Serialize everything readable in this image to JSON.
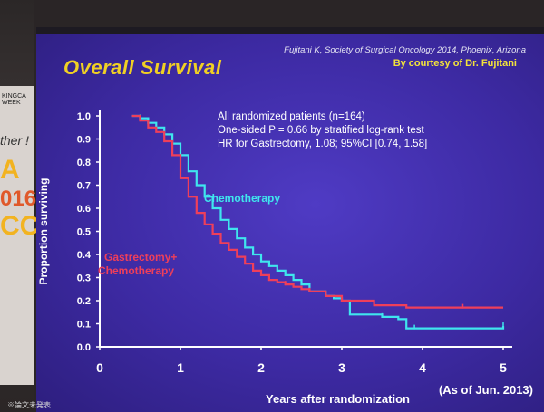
{
  "slide": {
    "credit": "Fujitani K, Society of Surgical Oncology 2014, Phoenix, Arizona",
    "courtesy": "By courtesy of Dr. Fujitani",
    "title": "Overall  Survival",
    "stats": [
      "All randomized patients (n=164)",
      "One-sided P = 0.66 by stratified log-rank test",
      "HR for Gastrectomy, 1.08; 95%CI [0.74, 1.58]"
    ],
    "as_of": "(As of Jun. 2013)"
  },
  "room": {
    "banner_line": "KINGCA WEEK",
    "banner_script": "ther !",
    "banner_letters": [
      "A",
      "016",
      "CC"
    ],
    "footnote": "※論文未発表"
  },
  "colors": {
    "chemotherapy": "#3fe6ee",
    "gastrectomy": "#ef3f5a",
    "axis": "#ffffff",
    "title": "#f0d024"
  },
  "chart_data": {
    "type": "line",
    "title": "Overall  Survival",
    "xlabel": "Years after randomization",
    "ylabel": "Proportion surviving",
    "xlim": [
      0,
      5
    ],
    "ylim": [
      0,
      1.0
    ],
    "x_ticks": [
      "0",
      "1",
      "2",
      "3",
      "4",
      "5"
    ],
    "y_ticks": [
      "0.0",
      "0.1",
      "0.2",
      "0.3",
      "0.4",
      "0.5",
      "0.6",
      "0.7",
      "0.8",
      "0.9",
      "1.0"
    ],
    "series": [
      {
        "name": "Chemotherapy",
        "color_key": "chemotherapy",
        "x": [
          0.4,
          0.5,
          0.6,
          0.7,
          0.8,
          0.9,
          1.0,
          1.1,
          1.2,
          1.3,
          1.4,
          1.5,
          1.6,
          1.7,
          1.8,
          1.9,
          2.0,
          2.1,
          2.2,
          2.3,
          2.4,
          2.5,
          2.6,
          2.8,
          2.9,
          3.0,
          3.1,
          3.3,
          3.5,
          3.7,
          3.8,
          3.9,
          4.0,
          4.5,
          5.0
        ],
        "y": [
          1.0,
          0.99,
          0.97,
          0.95,
          0.92,
          0.88,
          0.83,
          0.76,
          0.7,
          0.65,
          0.6,
          0.55,
          0.51,
          0.47,
          0.43,
          0.4,
          0.37,
          0.35,
          0.33,
          0.31,
          0.29,
          0.27,
          0.24,
          0.22,
          0.21,
          0.2,
          0.14,
          0.14,
          0.13,
          0.12,
          0.08,
          0.08,
          0.08,
          0.08,
          0.09
        ]
      },
      {
        "name": "Gastrectomy+\nChemotherapy",
        "color_key": "gastrectomy",
        "x": [
          0.4,
          0.5,
          0.6,
          0.7,
          0.8,
          0.9,
          1.0,
          1.1,
          1.2,
          1.3,
          1.4,
          1.5,
          1.6,
          1.7,
          1.8,
          1.9,
          2.0,
          2.1,
          2.2,
          2.3,
          2.4,
          2.5,
          2.6,
          2.8,
          3.0,
          3.4,
          3.8,
          4.0,
          4.5,
          5.0
        ],
        "y": [
          1.0,
          0.98,
          0.95,
          0.93,
          0.89,
          0.83,
          0.73,
          0.65,
          0.58,
          0.53,
          0.49,
          0.45,
          0.42,
          0.39,
          0.36,
          0.33,
          0.31,
          0.29,
          0.28,
          0.27,
          0.26,
          0.25,
          0.24,
          0.22,
          0.2,
          0.18,
          0.17,
          0.17,
          0.17,
          0.17
        ]
      }
    ],
    "legend": "inline labels"
  }
}
